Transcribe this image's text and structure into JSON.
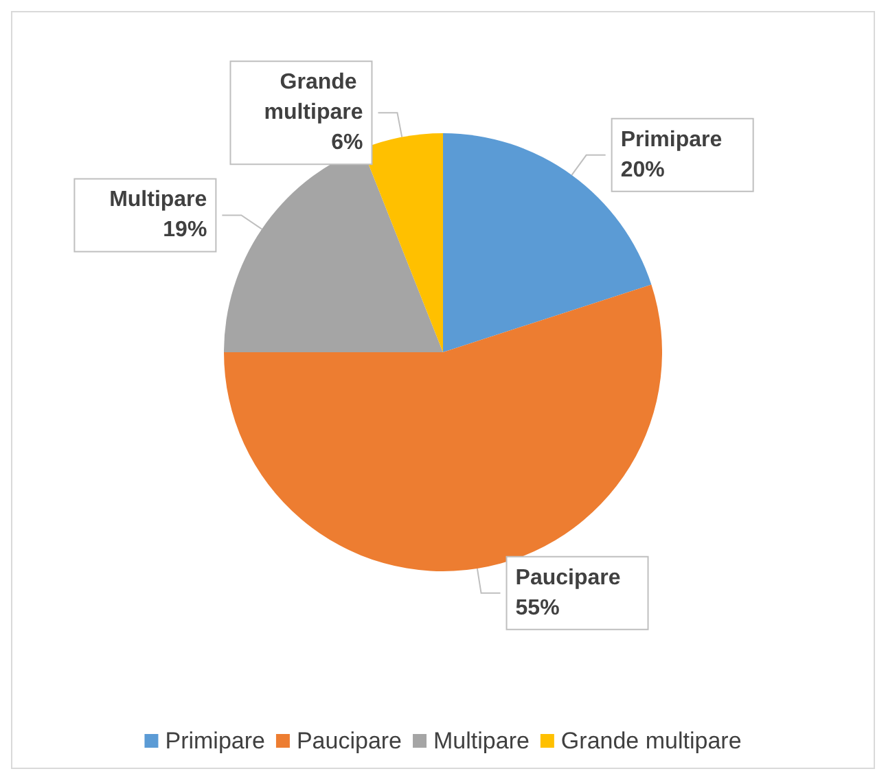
{
  "chart_data": {
    "type": "pie",
    "categories": [
      "Primipare",
      "Paucipare",
      "Multipare",
      "Grande multipare"
    ],
    "values": [
      20,
      55,
      19,
      6
    ],
    "colors": [
      "#5b9bd5",
      "#ed7d31",
      "#a5a5a5",
      "#ffc000"
    ],
    "value_labels": [
      "20%",
      "55%",
      "19%",
      "6%"
    ],
    "legend": "bottom"
  }
}
